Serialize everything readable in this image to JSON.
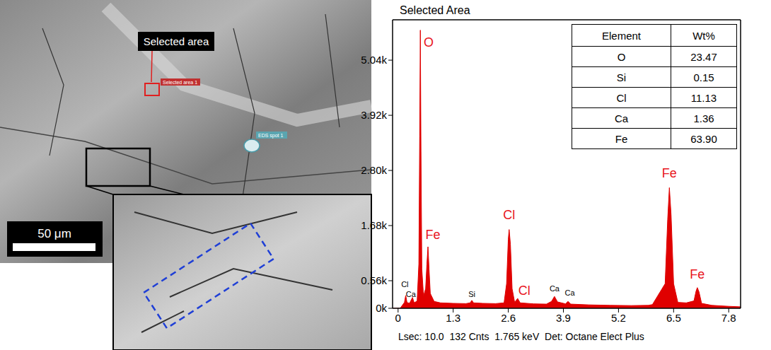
{
  "micrograph": {
    "callout": "Selected area",
    "area_label": "Selected area 1",
    "spot_label": "EDS spot 1",
    "scale_bar": "50 μm"
  },
  "chart_data": {
    "type": "area",
    "title": "Selected Area",
    "footer": "Lsec: 10.0  132 Cnts  1.765 keV  Det: Octane Elect Plus",
    "color": "#e00000",
    "x": [
      -0.13,
      0.05,
      0.1,
      0.15,
      0.18,
      0.21,
      0.27,
      0.34,
      0.38,
      0.45,
      0.49,
      0.51,
      0.525,
      0.54,
      0.56,
      0.6,
      0.65,
      0.68,
      0.705,
      0.73,
      0.76,
      0.85,
      1.0,
      1.3,
      1.6,
      1.7,
      1.74,
      1.78,
      2.0,
      2.3,
      2.5,
      2.56,
      2.6,
      2.62,
      2.65,
      2.69,
      2.75,
      2.82,
      2.88,
      3.2,
      3.5,
      3.62,
      3.69,
      3.76,
      3.95,
      4.01,
      4.07,
      4.5,
      5.0,
      5.5,
      5.9,
      6.0,
      6.3,
      6.36,
      6.4,
      6.44,
      6.5,
      6.6,
      6.8,
      6.98,
      7.03,
      7.06,
      7.1,
      7.16,
      7.4,
      7.8,
      8.08
    ],
    "values": [
      0,
      0,
      60,
      120,
      260,
      120,
      100,
      220,
      110,
      150,
      900,
      3500,
      5650,
      3200,
      800,
      250,
      400,
      900,
      1250,
      800,
      300,
      140,
      110,
      100,
      95,
      110,
      160,
      110,
      100,
      95,
      110,
      500,
      1400,
      1600,
      1300,
      400,
      120,
      200,
      110,
      90,
      85,
      140,
      240,
      130,
      90,
      140,
      85,
      70,
      60,
      55,
      60,
      75,
      500,
      1800,
      2450,
      1900,
      500,
      120,
      110,
      150,
      350,
      420,
      330,
      100,
      60,
      40,
      30
    ],
    "xlim": [
      -0.13,
      8.08
    ],
    "xticks": [
      0,
      1.3,
      2.6,
      3.9,
      5.2,
      6.5,
      7.8
    ],
    "ylim": [
      0,
      5860
    ],
    "yticks": [
      {
        "value": 0,
        "label": "0k"
      },
      {
        "value": 560,
        "label": "0.56k"
      },
      {
        "value": 1680,
        "label": "1.68k"
      },
      {
        "value": 2800,
        "label": "2.80k"
      },
      {
        "value": 3920,
        "label": "3.92k"
      },
      {
        "value": 5040,
        "label": "5.04k"
      }
    ],
    "grid": false,
    "annotations": [
      {
        "text": "O",
        "x": 0.72,
        "y": 5400,
        "color": "#e8141c"
      },
      {
        "text": "Fe",
        "x": 0.82,
        "y": 1500,
        "color": "#e8141c"
      },
      {
        "text": "Cl",
        "x": 0.16,
        "y": 480,
        "color": "#000000"
      },
      {
        "text": "Ca",
        "x": 0.3,
        "y": 290,
        "color": "#000000"
      },
      {
        "text": "Si",
        "x": 1.74,
        "y": 290,
        "color": "#000000"
      },
      {
        "text": "Cl",
        "x": 2.62,
        "y": 1900,
        "color": "#e8141c"
      },
      {
        "text": "Cl",
        "x": 2.98,
        "y": 370,
        "color": "#e8141c"
      },
      {
        "text": "Ca",
        "x": 3.69,
        "y": 400,
        "color": "#000000"
      },
      {
        "text": "Ca",
        "x": 4.05,
        "y": 310,
        "color": "#000000"
      },
      {
        "text": "Fe",
        "x": 6.4,
        "y": 2750,
        "color": "#e8141c"
      },
      {
        "text": "Fe",
        "x": 7.06,
        "y": 700,
        "color": "#e8141c"
      }
    ],
    "table": {
      "header": [
        "Element",
        "Wt%"
      ],
      "rows": [
        [
          "O",
          "23.47"
        ],
        [
          "Si",
          "0.15"
        ],
        [
          "Cl",
          "11.13"
        ],
        [
          "Ca",
          "1.36"
        ],
        [
          "Fe",
          "63.90"
        ]
      ]
    }
  }
}
